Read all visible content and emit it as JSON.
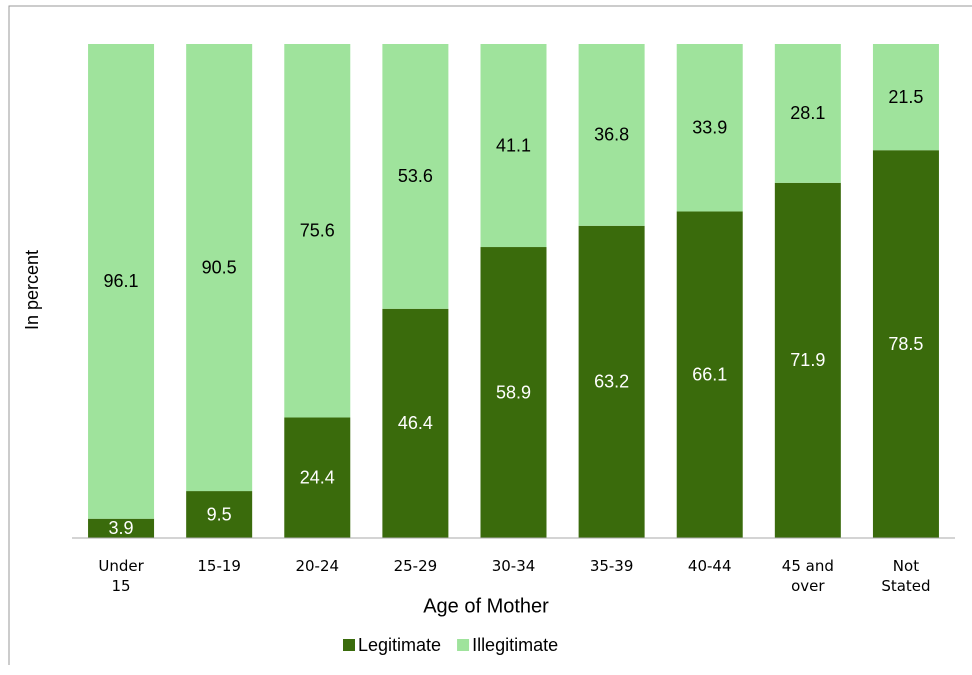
{
  "chart_data": {
    "type": "stacked-bar",
    "x_label": "Age of Mother",
    "y_label": "In percent",
    "categories": [
      "Under 15",
      "15-19",
      "20-24",
      "25-29",
      "30-34",
      "35-39",
      "40-44",
      "45 and over",
      "Not Stated"
    ],
    "series": [
      {
        "name": "Legitimate",
        "color": "#3a6b0c",
        "label_color": "#ffffff",
        "values": [
          3.9,
          9.5,
          24.4,
          46.4,
          58.9,
          63.2,
          66.1,
          71.9,
          78.5
        ]
      },
      {
        "name": "Illegitimate",
        "color": "#9fe39c",
        "label_color": "#000000",
        "values": [
          96.1,
          90.5,
          75.6,
          53.6,
          41.1,
          36.8,
          33.9,
          28.1,
          21.5
        ]
      }
    ],
    "ylim": [
      0,
      100
    ],
    "legend": "bottom"
  }
}
